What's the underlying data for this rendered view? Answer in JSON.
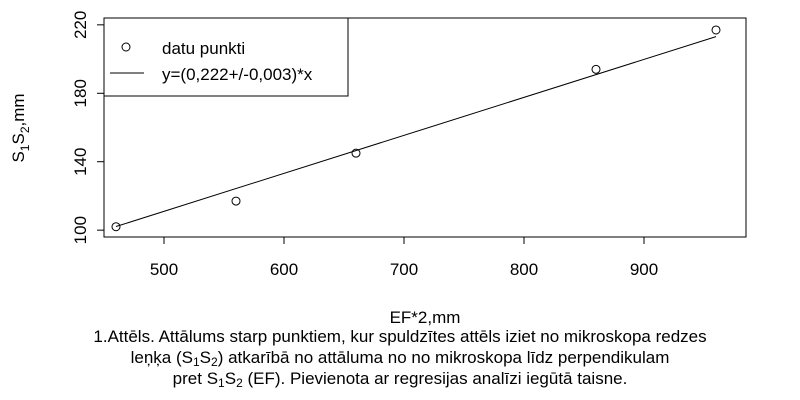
{
  "chart_data": {
    "type": "scatter",
    "xlabel": "EF*2,mm",
    "ylabel": {
      "base": "S",
      "sub1": "1",
      "mid": "S",
      "sub2": "2",
      "tail": ",mm"
    },
    "xlim": [
      450,
      985
    ],
    "ylim": [
      96,
      224
    ],
    "x_ticks": [
      500,
      600,
      700,
      800,
      900
    ],
    "y_ticks": [
      100,
      140,
      180,
      220
    ],
    "grid": false,
    "legend_position": "top-left",
    "points": [
      {
        "x": 460,
        "y": 102
      },
      {
        "x": 560,
        "y": 117
      },
      {
        "x": 660,
        "y": 145
      },
      {
        "x": 860,
        "y": 194
      },
      {
        "x": 960,
        "y": 217
      }
    ],
    "fit": {
      "slope": 0.222,
      "x_from": 460,
      "x_to": 960
    },
    "series": [
      {
        "name": "datu punkti",
        "kind": "points"
      },
      {
        "name": "y=(0,222+/-0,003)*x",
        "kind": "line"
      }
    ]
  },
  "caption": {
    "line1": "1.Attēls. Attālums starp punktiem, kur spuldzītes attēls iziet no mikroskopa redzes",
    "line2_pre": "leņķa (S",
    "line2_sub1": "1",
    "line2_mid": "S",
    "line2_sub2": "2",
    "line2_post": ") atkarībā no attāluma no no mikroskopa līdz perpendikulam",
    "line3_pre": "pret S",
    "line3_sub1": "1",
    "line3_mid": "S",
    "line3_sub2": "2",
    "line3_post": " (EF). Pievienota ar regresijas analīzi iegūtā taisne."
  }
}
